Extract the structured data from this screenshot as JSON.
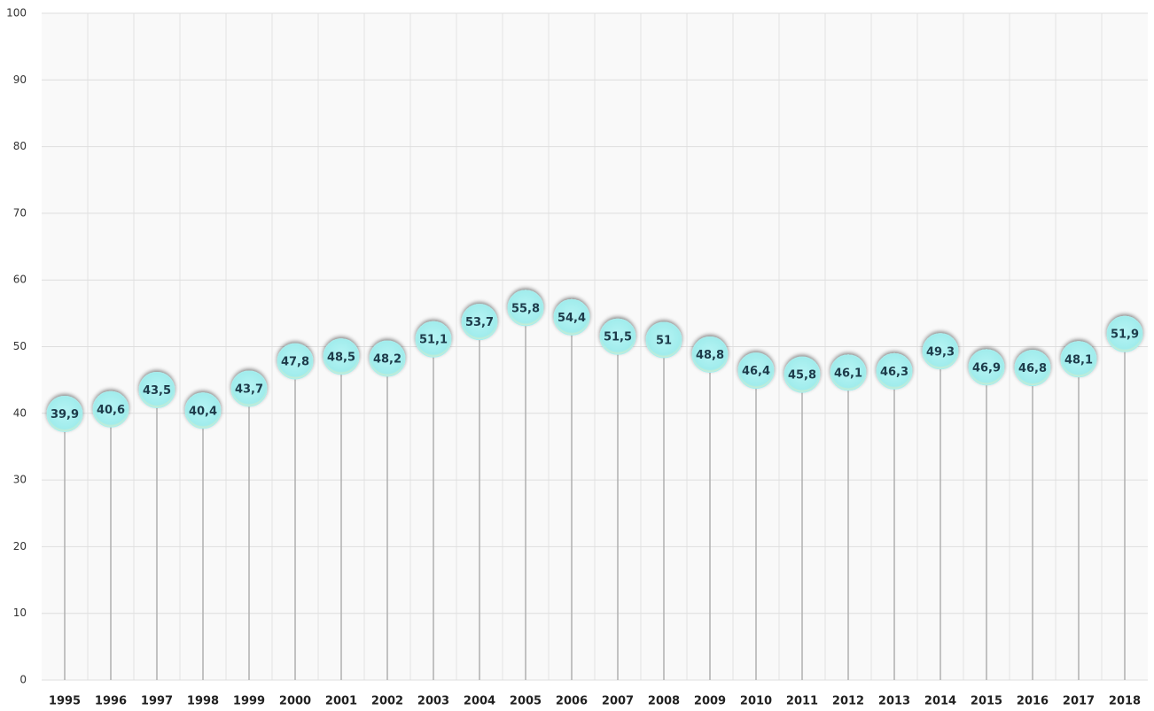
{
  "chart_data": {
    "type": "lollipop",
    "categories": [
      "1995",
      "1996",
      "1997",
      "1998",
      "1999",
      "2000",
      "2001",
      "2002",
      "2003",
      "2004",
      "2005",
      "2006",
      "2007",
      "2008",
      "2009",
      "2010",
      "2011",
      "2012",
      "2013",
      "2014",
      "2015",
      "2016",
      "2017",
      "2018"
    ],
    "values": [
      39.9,
      40.6,
      43.5,
      40.4,
      43.7,
      47.8,
      48.5,
      48.2,
      51.1,
      53.7,
      55.8,
      54.4,
      51.5,
      51,
      48.8,
      46.4,
      45.8,
      46.1,
      46.3,
      49.3,
      46.9,
      46.8,
      48.1,
      51.9
    ],
    "value_labels": [
      "39,9",
      "40,6",
      "43,5",
      "40,4",
      "43,7",
      "47,8",
      "48,5",
      "48,2",
      "51,1",
      "53,7",
      "55,8",
      "54,4",
      "51,5",
      "51",
      "48,8",
      "46,4",
      "45,8",
      "46,1",
      "46,3",
      "49,3",
      "46,9",
      "46,8",
      "48,1",
      "51,9"
    ],
    "color": "#a6eeee",
    "ylim": [
      0,
      100
    ],
    "yticks": [
      0,
      10,
      20,
      30,
      40,
      50,
      60,
      70,
      80,
      90,
      100
    ],
    "grid": true
  }
}
